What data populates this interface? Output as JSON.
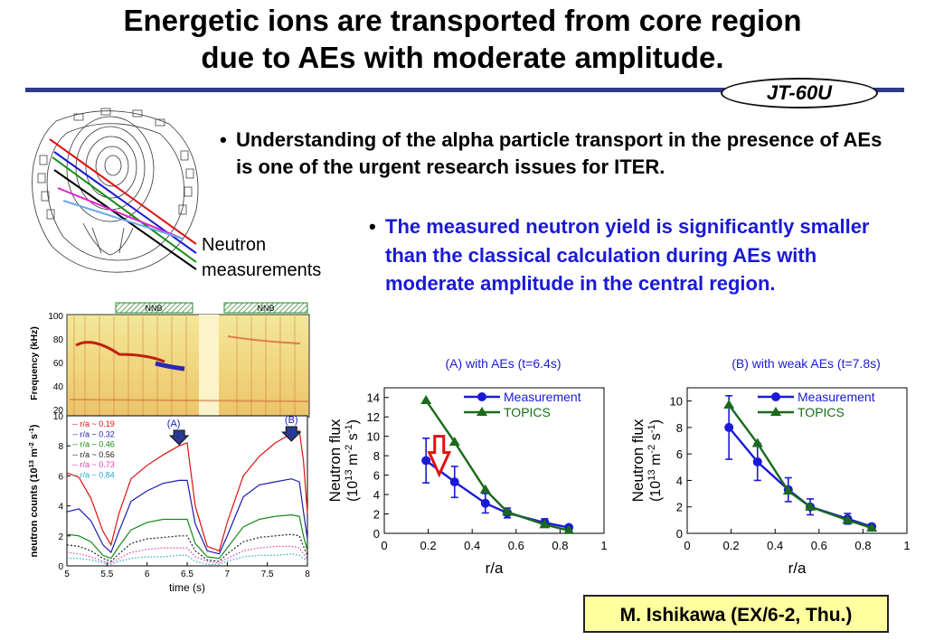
{
  "slide": {
    "title_line1": "Energetic ions are transported from core region",
    "title_line2": "due to AEs with moderate amplitude.",
    "badge": "JT-60U",
    "bullet1": "Understanding of the alpha particle transport in the presence of AEs is one of the urgent research issues for ITER.",
    "bullet2": "The measured neutron yield is significantly smaller than the classical calculation during AEs with moderate amplitude in the central region.",
    "neutron_label_line1": "Neutron",
    "neutron_label_line2": "measurements",
    "citation": "M. Ishikawa (EX/6-2, Thu.)",
    "accent_color": "#2e3a8c",
    "bullet2_color": "#1a1ad6"
  },
  "spectrogram": {
    "ylabel": "Frequency (kHz)",
    "yticks": [
      "100",
      "80",
      "60",
      "40",
      "20"
    ],
    "nnb_label": "NNB"
  },
  "time_trace": {
    "ylabel": "neutron counts (10^13 m^-2 s^-1)",
    "xlabel": "time (s)",
    "marker_a": "(A)",
    "marker_b": "(B)"
  },
  "chart_data": [
    {
      "type": "line",
      "title": "",
      "xlabel": "time (s)",
      "ylabel": "neutron counts (10^13 m^-2 s^-1)",
      "xlim": [
        5,
        8
      ],
      "ylim": [
        0,
        10
      ],
      "xticks": [
        "5",
        "5.5",
        "6",
        "6.5",
        "7",
        "7.5",
        "8"
      ],
      "yticks": [
        "0",
        "2",
        "4",
        "6",
        "8",
        "10"
      ],
      "series": [
        {
          "name": "r/a ~ 0.19",
          "color": "#dd1111",
          "x": [
            5.0,
            5.15,
            5.3,
            5.45,
            5.55,
            5.65,
            5.8,
            6.0,
            6.2,
            6.4,
            6.5,
            6.6,
            6.75,
            6.9,
            7.0,
            7.2,
            7.4,
            7.6,
            7.8,
            7.9,
            7.95,
            8.0
          ],
          "y": [
            6.2,
            5.9,
            4.5,
            2.3,
            1.4,
            3.5,
            5.8,
            6.7,
            7.4,
            8.0,
            8.2,
            4.0,
            1.3,
            1.0,
            2.9,
            6.0,
            7.3,
            8.2,
            8.8,
            9.0,
            7.0,
            3.5
          ]
        },
        {
          "name": "r/a ~ 0.32",
          "color": "#1a1ab0",
          "x": [
            5.0,
            5.15,
            5.3,
            5.45,
            5.55,
            5.65,
            5.8,
            6.0,
            6.2,
            6.4,
            6.5,
            6.6,
            6.75,
            6.9,
            7.0,
            7.2,
            7.4,
            7.6,
            7.8,
            7.9,
            7.95,
            8.0
          ],
          "y": [
            3.6,
            3.8,
            3.0,
            1.4,
            0.9,
            2.3,
            4.3,
            5.0,
            5.5,
            5.7,
            5.7,
            2.8,
            1.0,
            0.8,
            2.0,
            4.6,
            5.4,
            5.6,
            5.8,
            5.6,
            3.6,
            1.8
          ]
        },
        {
          "name": "r/a ~ 0.46",
          "color": "#138a13",
          "x": [
            5.0,
            5.15,
            5.3,
            5.45,
            5.55,
            5.65,
            5.8,
            6.0,
            6.2,
            6.4,
            6.5,
            6.6,
            6.75,
            6.9,
            7.0,
            7.2,
            7.4,
            7.6,
            7.8,
            7.9,
            7.95,
            8.0
          ],
          "y": [
            2.1,
            2.0,
            1.6,
            0.7,
            0.5,
            1.3,
            2.4,
            2.9,
            3.1,
            3.1,
            3.1,
            1.5,
            0.6,
            0.5,
            1.2,
            2.6,
            3.1,
            3.3,
            3.4,
            3.3,
            2.0,
            1.0
          ]
        },
        {
          "name": "r/a ~ 0.56",
          "color": "#222222",
          "x": [
            5.0,
            5.15,
            5.3,
            5.45,
            5.55,
            5.65,
            5.8,
            6.0,
            6.2,
            6.4,
            6.5,
            6.6,
            6.75,
            6.9,
            7.0,
            7.2,
            7.4,
            7.6,
            7.8,
            7.9,
            7.95,
            8.0
          ],
          "y": [
            1.4,
            1.3,
            1.0,
            0.5,
            0.3,
            0.8,
            1.5,
            1.8,
            1.9,
            2.0,
            2.0,
            1.0,
            0.4,
            0.3,
            0.8,
            1.6,
            1.9,
            2.0,
            2.1,
            2.0,
            1.3,
            0.7
          ]
        },
        {
          "name": "r/a ~ 0.73",
          "color": "#e03ab8",
          "x": [
            5.0,
            5.15,
            5.3,
            5.45,
            5.55,
            5.65,
            5.8,
            6.0,
            6.2,
            6.4,
            6.5,
            6.6,
            6.75,
            6.9,
            7.0,
            7.2,
            7.4,
            7.6,
            7.8,
            7.9,
            7.95,
            8.0
          ],
          "y": [
            0.9,
            0.8,
            0.6,
            0.3,
            0.2,
            0.5,
            0.9,
            1.1,
            1.2,
            1.2,
            1.2,
            0.6,
            0.3,
            0.2,
            0.5,
            1.0,
            1.2,
            1.3,
            1.3,
            1.2,
            0.8,
            0.4
          ]
        },
        {
          "name": "r/a ~ 0.84",
          "color": "#22aacc",
          "x": [
            5.0,
            5.15,
            5.3,
            5.45,
            5.55,
            5.65,
            5.8,
            6.0,
            6.2,
            6.4,
            6.5,
            6.6,
            6.75,
            6.9,
            7.0,
            7.2,
            7.4,
            7.6,
            7.8,
            7.9,
            7.95,
            8.0
          ],
          "y": [
            0.5,
            0.5,
            0.4,
            0.2,
            0.1,
            0.3,
            0.5,
            0.6,
            0.6,
            0.7,
            0.7,
            0.3,
            0.1,
            0.1,
            0.3,
            0.6,
            0.7,
            0.7,
            0.8,
            0.7,
            0.5,
            0.3
          ]
        }
      ]
    },
    {
      "type": "line",
      "title": "(A) with AEs (t=6.4s)",
      "xlabel": "r/a",
      "ylabel": "Neutron flux (10^13 m^-2 s^-1)",
      "xlim": [
        0,
        1
      ],
      "ylim": [
        0,
        15
      ],
      "xticks": [
        "0",
        "0.2",
        "0.4",
        "0.6",
        "0.8",
        "1"
      ],
      "yticks": [
        "0",
        "2",
        "4",
        "6",
        "8",
        "10",
        "12",
        "14"
      ],
      "series": [
        {
          "name": "Measurement",
          "color": "#1a1ad6",
          "x": [
            0.19,
            0.32,
            0.46,
            0.56,
            0.73,
            0.84
          ],
          "y": [
            7.5,
            5.3,
            3.1,
            2.1,
            1.1,
            0.6
          ],
          "yerr": [
            2.3,
            1.6,
            1.0,
            0.5,
            0.4,
            0.2
          ]
        },
        {
          "name": "TOPICS",
          "color": "#1a6a1a",
          "x": [
            0.19,
            0.32,
            0.46,
            0.56,
            0.73,
            0.84
          ],
          "y": [
            13.7,
            9.4,
            4.5,
            2.2,
            0.9,
            0.3
          ]
        }
      ],
      "annotation": "red arrow at r/a ~ 0.25 pointing down"
    },
    {
      "type": "line",
      "title": "(B) with weak AEs (t=7.8s)",
      "xlabel": "r/a",
      "ylabel": "Neutron flux (10^13 m^-2 s^-1)",
      "xlim": [
        0,
        1
      ],
      "ylim": [
        0,
        11
      ],
      "xticks": [
        "0",
        "0.2",
        "0.4",
        "0.6",
        "0.8",
        "1"
      ],
      "yticks": [
        "0",
        "2",
        "4",
        "6",
        "8",
        "10"
      ],
      "series": [
        {
          "name": "Measurement",
          "color": "#1a1ad6",
          "x": [
            0.19,
            0.32,
            0.46,
            0.56,
            0.73,
            0.84
          ],
          "y": [
            8.0,
            5.4,
            3.3,
            2.0,
            1.1,
            0.5
          ],
          "yerr": [
            2.4,
            1.4,
            0.9,
            0.6,
            0.4,
            0.2
          ]
        },
        {
          "name": "TOPICS",
          "color": "#1a6a1a",
          "x": [
            0.19,
            0.32,
            0.46,
            0.56,
            0.73,
            0.84
          ],
          "y": [
            9.7,
            6.8,
            3.2,
            2.0,
            1.0,
            0.4
          ]
        }
      ]
    }
  ]
}
